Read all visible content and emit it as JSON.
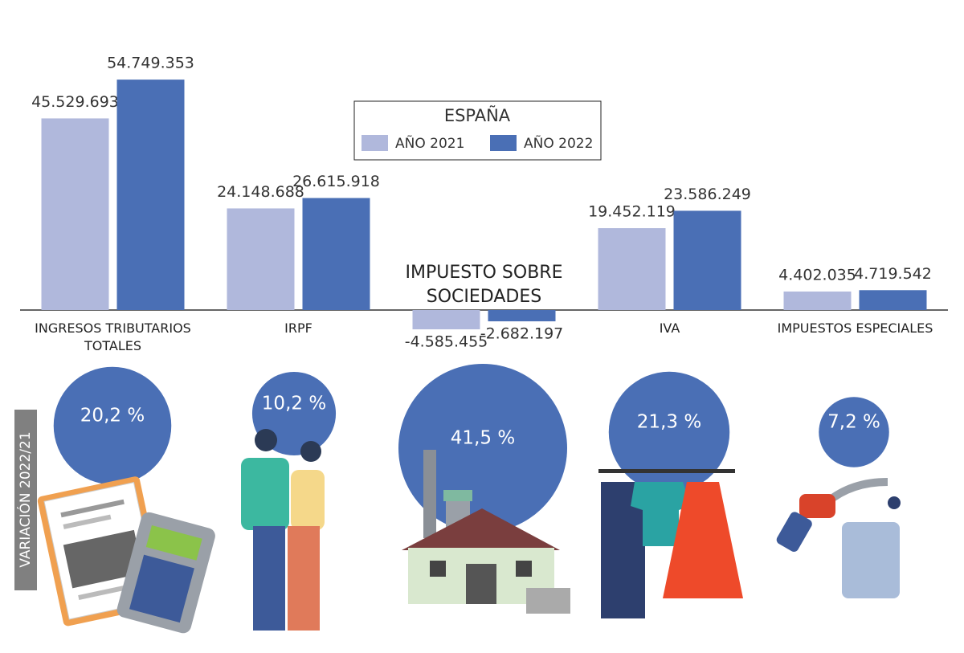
{
  "chart_data": [
    {
      "type": "bar",
      "categories": [
        "INGRESOS TRIBUTARIOS TOTALES",
        "IRPF",
        "IMPUESTO SOBRE SOCIEDADES",
        "IVA",
        "IMPUESTOS ESPECIALES"
      ],
      "legend_title": "ESPAÑA",
      "series": [
        {
          "name": "AÑO 2021",
          "color": "#b0b8dc",
          "values": [
            45529693,
            24148688,
            -4585455,
            19452119,
            4402035
          ],
          "value_labels": [
            "45.529.693",
            "24.148.688",
            "-4.585.455",
            "19.452.119",
            "4.402.035"
          ]
        },
        {
          "name": "AÑO 2022",
          "color": "#4a6fb5",
          "values": [
            54749353,
            26615918,
            -2682197,
            23586249,
            4719542
          ],
          "value_labels": [
            "54.749.353",
            "26.615.918",
            "-2.682.197",
            "23.586.249",
            "4.719.542"
          ]
        }
      ],
      "ylim": [
        -10000000,
        60000000
      ]
    },
    {
      "type": "bubble",
      "title": "VARIACIÓN 2022/21",
      "color": "#4a6fb5",
      "values": [
        20.2,
        10.2,
        41.5,
        21.3,
        7.2
      ],
      "value_labels": [
        "20,2 %",
        "10,2 %",
        "41,5 %",
        "21,3 %",
        "7,2 %"
      ]
    }
  ]
}
